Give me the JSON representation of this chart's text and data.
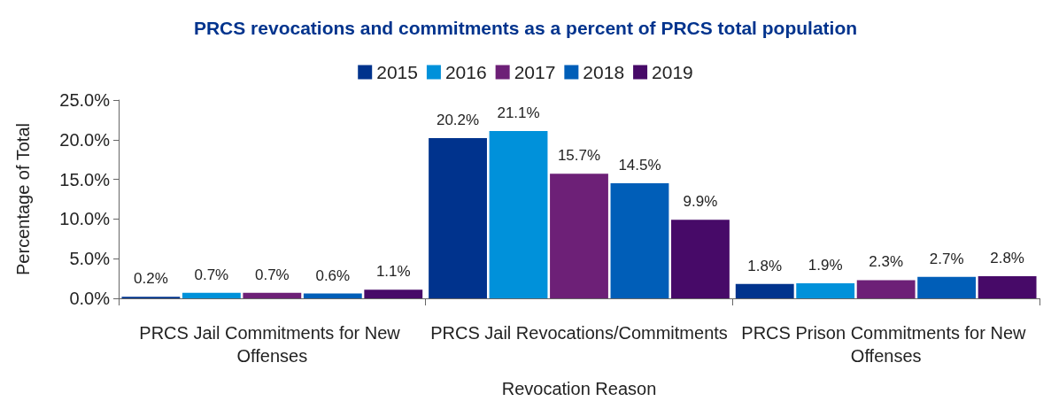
{
  "chart_data": {
    "type": "bar",
    "title": "PRCS revocations and commitments as a percent of PRCS total population",
    "xlabel": "Revocation Reason",
    "ylabel": "Percentage of Total",
    "categories": [
      "PRCS Jail Commitments for New Offenses",
      "PRCS Jail Revocations/Commitments",
      "PRCS Prison Commitments for New Offenses"
    ],
    "series": [
      {
        "name": "2015",
        "color": "#00338d",
        "values": [
          0.2,
          20.2,
          1.8
        ],
        "value_labels": [
          "0.2%",
          "20.2%",
          "1.8%"
        ]
      },
      {
        "name": "2016",
        "color": "#0091da",
        "values": [
          0.7,
          21.1,
          1.9
        ],
        "value_labels": [
          "0.7%",
          "21.1%",
          "1.9%"
        ]
      },
      {
        "name": "2017",
        "color": "#6d2077",
        "values": [
          0.7,
          15.7,
          2.3
        ],
        "value_labels": [
          "0.7%",
          "15.7%",
          "2.3%"
        ]
      },
      {
        "name": "2018",
        "color": "#005eb8",
        "values": [
          0.6,
          14.5,
          2.7
        ],
        "value_labels": [
          "0.6%",
          "14.5%",
          "2.7%"
        ]
      },
      {
        "name": "2019",
        "color": "#470a68",
        "values": [
          1.1,
          9.9,
          2.8
        ],
        "value_labels": [
          "1.1%",
          "9.9%",
          "2.8%"
        ]
      }
    ],
    "ylim": [
      0,
      25
    ],
    "yticks": [
      {
        "value": 0,
        "label": "0.0%"
      },
      {
        "value": 5,
        "label": "5.0%"
      },
      {
        "value": 10,
        "label": "10.0%"
      },
      {
        "value": 15,
        "label": "15.0%"
      },
      {
        "value": 20,
        "label": "20.0%"
      },
      {
        "value": 25,
        "label": "25.0%"
      }
    ],
    "legend": "top",
    "grid": false
  }
}
